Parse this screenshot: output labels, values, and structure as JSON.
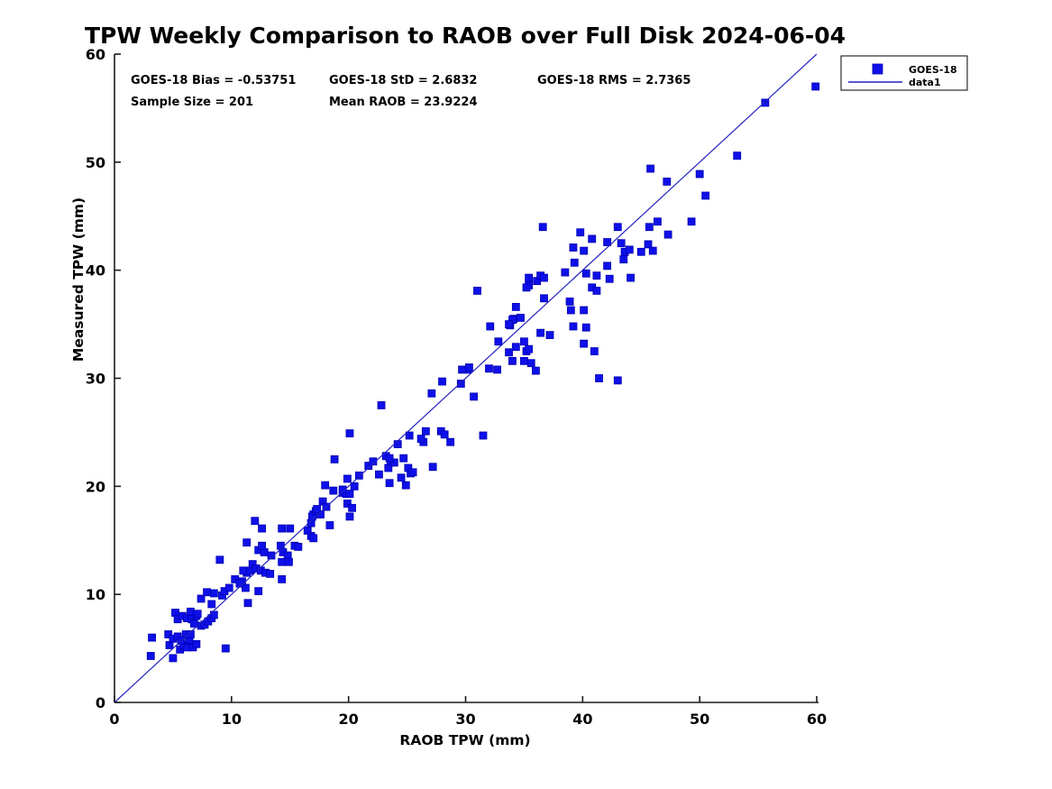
{
  "title": "TPW Weekly Comparison to RAOB over Full Disk 2024-06-04",
  "stats": {
    "bias": "GOES-18 Bias = -0.53751",
    "std": "GOES-18 StD = 2.6832",
    "rms": "GOES-18 RMS = 2.7365",
    "sample": "Sample Size = 201",
    "mean_raob": "Mean RAOB = 23.9224"
  },
  "legend": {
    "marker_label": "GOES-18",
    "line_label": "data1"
  },
  "colors": {
    "marker": "#0f10e8",
    "marker_edge": "#0000b4",
    "line": "#2222c0",
    "axis": "#1a1a1a"
  },
  "chart_data": {
    "type": "scatter",
    "title": "TPW Weekly Comparison to RAOB over Full Disk 2024-06-04",
    "xlabel": "RAOB TPW (mm)",
    "ylabel": "Measured TPW (mm)",
    "xlim": [
      0,
      60
    ],
    "ylim": [
      0,
      60
    ],
    "xticks": [
      0,
      10,
      20,
      30,
      40,
      50,
      60
    ],
    "yticks": [
      0,
      10,
      20,
      30,
      40,
      50,
      60
    ],
    "grid": false,
    "legend_position": "top-right-outside",
    "annotations": [
      "GOES-18 Bias = -0.53751",
      "GOES-18 StD = 2.6832",
      "GOES-18 RMS = 2.7365",
      "Sample Size = 201",
      "Mean RAOB = 23.9224"
    ],
    "series": [
      {
        "name": "GOES-18",
        "type": "scatter",
        "marker": "square",
        "color": "#0f10e8",
        "points": [
          [
            3.2,
            6.0
          ],
          [
            3.1,
            4.3
          ],
          [
            4.6,
            6.3
          ],
          [
            4.7,
            5.3
          ],
          [
            5.0,
            5.9
          ],
          [
            5.4,
            6.1
          ],
          [
            5.6,
            4.9
          ],
          [
            5.9,
            5.3
          ],
          [
            6.2,
            5.1
          ],
          [
            6.4,
            5.8
          ],
          [
            6.7,
            5.1
          ],
          [
            7.0,
            5.4
          ],
          [
            5.0,
            4.1
          ],
          [
            6.1,
            6.3
          ],
          [
            5.7,
            5.7
          ],
          [
            6.5,
            6.3
          ],
          [
            9.5,
            5.0
          ],
          [
            5.2,
            8.3
          ],
          [
            5.4,
            7.7
          ],
          [
            5.8,
            8.0
          ],
          [
            6.2,
            7.8
          ],
          [
            6.6,
            7.7
          ],
          [
            7.0,
            8.0
          ],
          [
            6.5,
            8.4
          ],
          [
            7.1,
            8.2
          ],
          [
            6.8,
            7.3
          ],
          [
            7.4,
            7.1
          ],
          [
            7.7,
            7.2
          ],
          [
            8.0,
            7.5
          ],
          [
            8.3,
            7.8
          ],
          [
            8.5,
            8.1
          ],
          [
            8.3,
            9.1
          ],
          [
            7.4,
            9.6
          ],
          [
            7.9,
            10.2
          ],
          [
            8.5,
            10.1
          ],
          [
            9.2,
            9.9
          ],
          [
            9.4,
            10.3
          ],
          [
            9.8,
            10.6
          ],
          [
            10.3,
            11.4
          ],
          [
            10.9,
            11.2
          ],
          [
            11.2,
            10.6
          ],
          [
            12.3,
            10.3
          ],
          [
            11.4,
            9.2
          ],
          [
            9.0,
            13.2
          ],
          [
            10.7,
            11.0
          ],
          [
            14.3,
            11.4
          ],
          [
            11.3,
            12.0
          ],
          [
            11.0,
            12.2
          ],
          [
            11.6,
            12.2
          ],
          [
            11.8,
            12.8
          ],
          [
            12.1,
            12.4
          ],
          [
            12.5,
            12.2
          ],
          [
            12.9,
            12.0
          ],
          [
            13.3,
            11.9
          ],
          [
            12.0,
            16.8
          ],
          [
            12.6,
            16.1
          ],
          [
            11.3,
            14.8
          ],
          [
            12.3,
            14.1
          ],
          [
            12.8,
            13.9
          ],
          [
            12.6,
            14.5
          ],
          [
            13.4,
            13.6
          ],
          [
            14.2,
            14.5
          ],
          [
            15.4,
            14.5
          ],
          [
            14.4,
            13.9
          ],
          [
            14.8,
            13.6
          ],
          [
            14.3,
            13.0
          ],
          [
            14.9,
            13.0
          ],
          [
            15.7,
            14.4
          ],
          [
            14.3,
            16.1
          ],
          [
            15.0,
            16.1
          ],
          [
            16.5,
            15.9
          ],
          [
            16.8,
            15.4
          ],
          [
            17.0,
            15.2
          ],
          [
            16.8,
            16.6
          ],
          [
            17.0,
            17.4
          ],
          [
            17.6,
            17.4
          ],
          [
            16.9,
            17.2
          ],
          [
            17.2,
            17.7
          ],
          [
            17.3,
            17.9
          ],
          [
            17.8,
            18.6
          ],
          [
            18.1,
            18.1
          ],
          [
            18.4,
            16.4
          ],
          [
            18.7,
            19.6
          ],
          [
            19.5,
            19.4
          ],
          [
            19.8,
            19.3
          ],
          [
            19.9,
            18.4
          ],
          [
            20.3,
            18.0
          ],
          [
            20.1,
            17.2
          ],
          [
            18.8,
            22.5
          ],
          [
            20.1,
            24.9
          ],
          [
            18.0,
            20.1
          ],
          [
            19.5,
            19.7
          ],
          [
            19.9,
            20.7
          ],
          [
            20.5,
            20.0
          ],
          [
            20.1,
            19.3
          ],
          [
            20.9,
            21.0
          ],
          [
            21.7,
            21.9
          ],
          [
            22.1,
            22.3
          ],
          [
            23.2,
            22.8
          ],
          [
            23.6,
            22.2
          ],
          [
            22.6,
            21.1
          ],
          [
            23.4,
            21.7
          ],
          [
            23.5,
            20.3
          ],
          [
            24.5,
            20.8
          ],
          [
            24.9,
            20.1
          ],
          [
            25.3,
            21.2
          ],
          [
            24.2,
            23.9
          ],
          [
            25.2,
            24.7
          ],
          [
            26.4,
            24.1
          ],
          [
            22.8,
            27.5
          ],
          [
            23.9,
            22.2
          ],
          [
            24.7,
            22.6
          ],
          [
            25.1,
            21.7
          ],
          [
            25.5,
            21.3
          ],
          [
            23.5,
            22.6
          ],
          [
            27.2,
            21.8
          ],
          [
            26.6,
            25.1
          ],
          [
            26.2,
            24.4
          ],
          [
            27.9,
            25.1
          ],
          [
            28.2,
            24.8
          ],
          [
            28.7,
            24.1
          ],
          [
            31.5,
            24.7
          ],
          [
            27.1,
            28.6
          ],
          [
            28.0,
            29.7
          ],
          [
            29.6,
            29.5
          ],
          [
            30.7,
            28.3
          ],
          [
            30.2,
            30.8
          ],
          [
            31.0,
            38.1
          ],
          [
            30.3,
            31.0
          ],
          [
            29.7,
            30.8
          ],
          [
            32.0,
            30.9
          ],
          [
            32.7,
            30.8
          ],
          [
            32.1,
            34.8
          ],
          [
            32.8,
            33.4
          ],
          [
            33.7,
            32.4
          ],
          [
            34.3,
            32.9
          ],
          [
            33.8,
            34.9
          ],
          [
            34.1,
            35.5
          ],
          [
            34.7,
            35.6
          ],
          [
            34.3,
            36.6
          ],
          [
            34.0,
            35.4
          ],
          [
            33.7,
            35.0
          ],
          [
            35.2,
            32.5
          ],
          [
            35.4,
            32.7
          ],
          [
            34.0,
            31.6
          ],
          [
            35.0,
            31.6
          ],
          [
            35.6,
            31.4
          ],
          [
            36.0,
            30.7
          ],
          [
            35.0,
            33.4
          ],
          [
            36.4,
            34.2
          ],
          [
            37.2,
            34.0
          ],
          [
            36.7,
            37.4
          ],
          [
            36.1,
            39.0
          ],
          [
            35.4,
            39.3
          ],
          [
            35.4,
            38.6
          ],
          [
            36.4,
            39.5
          ],
          [
            36.7,
            39.3
          ],
          [
            35.2,
            38.4
          ],
          [
            36.6,
            44.0
          ],
          [
            38.5,
            39.8
          ],
          [
            38.9,
            37.1
          ],
          [
            39.0,
            36.3
          ],
          [
            40.1,
            36.3
          ],
          [
            39.2,
            34.8
          ],
          [
            40.3,
            34.7
          ],
          [
            39.3,
            40.7
          ],
          [
            40.3,
            39.7
          ],
          [
            41.2,
            39.5
          ],
          [
            40.8,
            38.4
          ],
          [
            41.2,
            38.1
          ],
          [
            42.1,
            40.4
          ],
          [
            42.3,
            39.2
          ],
          [
            44.1,
            39.3
          ],
          [
            43.5,
            41.0
          ],
          [
            42.1,
            42.6
          ],
          [
            43.3,
            42.5
          ],
          [
            43.6,
            41.7
          ],
          [
            44.0,
            41.9
          ],
          [
            45.0,
            41.7
          ],
          [
            45.6,
            42.4
          ],
          [
            46.0,
            41.8
          ],
          [
            39.8,
            43.5
          ],
          [
            40.8,
            42.9
          ],
          [
            39.2,
            42.1
          ],
          [
            40.1,
            41.8
          ],
          [
            43.0,
            44.0
          ],
          [
            45.7,
            44.0
          ],
          [
            46.4,
            44.5
          ],
          [
            47.3,
            43.3
          ],
          [
            40.1,
            33.2
          ],
          [
            41.0,
            32.5
          ],
          [
            41.4,
            30.0
          ],
          [
            43.0,
            29.8
          ],
          [
            49.3,
            44.5
          ],
          [
            45.8,
            49.4
          ],
          [
            47.2,
            48.2
          ],
          [
            50.0,
            48.9
          ],
          [
            50.5,
            46.9
          ],
          [
            53.2,
            50.6
          ],
          [
            55.6,
            55.5
          ],
          [
            59.9,
            57.0
          ]
        ]
      },
      {
        "name": "data1",
        "type": "line",
        "color": "#2222c0",
        "points": [
          [
            0,
            0
          ],
          [
            60,
            60
          ]
        ]
      }
    ]
  }
}
